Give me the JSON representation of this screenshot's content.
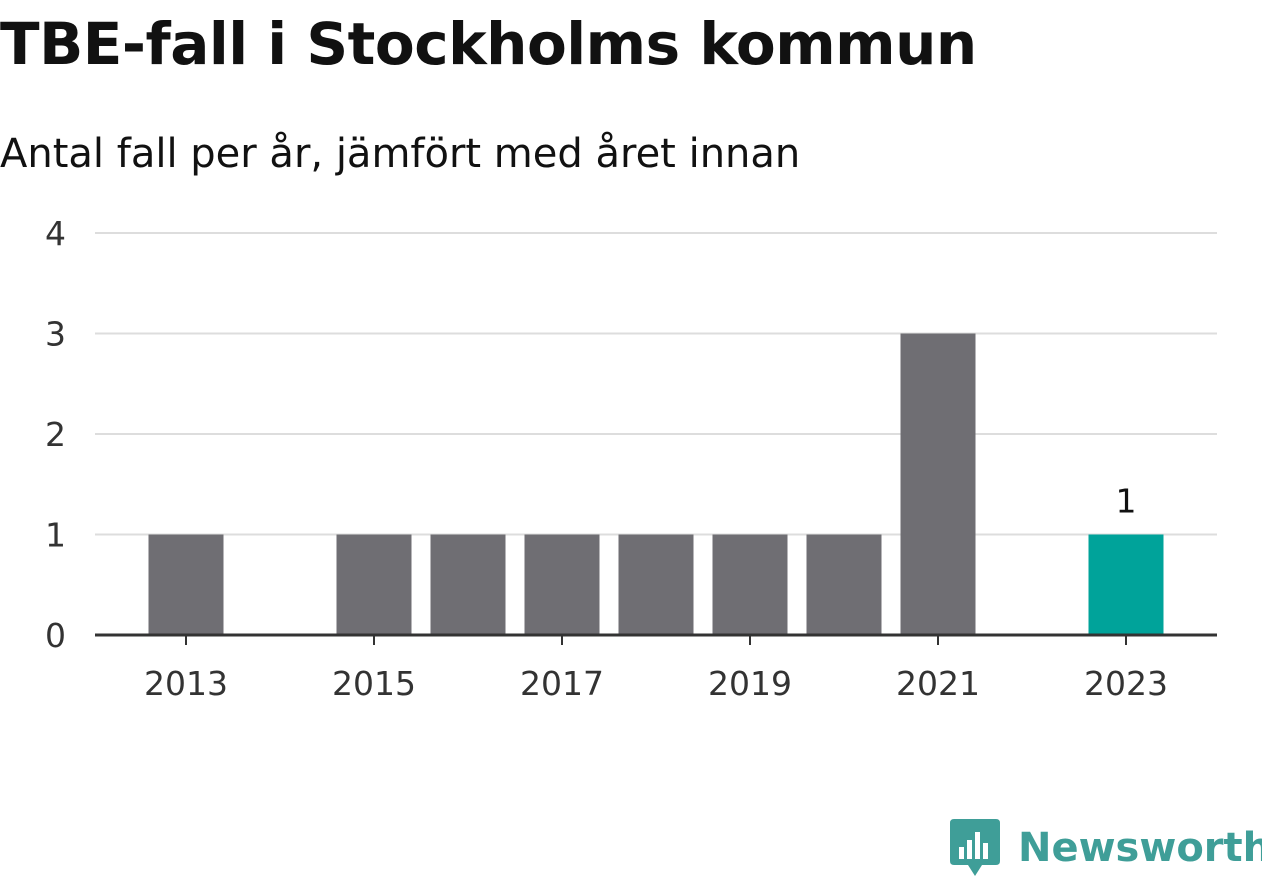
{
  "title": "TBE-fall i Stockholms kommun",
  "subtitle": "Antal fall per år, jämfört med året innan",
  "brand": {
    "name": "Newsworthy",
    "icon": "bar-chart-speech-bubble-icon",
    "color": "#3f9e98"
  },
  "colors": {
    "bar": "#6f6e73",
    "highlight": "#00a39a",
    "grid": "#dddddd",
    "axis": "#333333"
  },
  "chart_data": {
    "type": "bar",
    "title": "TBE-fall i Stockholms kommun",
    "subtitle": "Antal fall per år, jämfört med året innan",
    "xlabel": "",
    "ylabel": "",
    "categories": [
      "2013",
      "2014",
      "2015",
      "2016",
      "2017",
      "2018",
      "2019",
      "2020",
      "2021",
      "2022",
      "2023"
    ],
    "values": [
      1,
      0,
      1,
      1,
      1,
      1,
      1,
      1,
      3,
      0,
      1
    ],
    "highlight_category": "2023",
    "x_tick_labels": [
      "2013",
      "2015",
      "2017",
      "2019",
      "2021",
      "2023"
    ],
    "y_ticks": [
      0,
      1,
      2,
      3,
      4
    ],
    "ylim": [
      0,
      4
    ],
    "annotations": [
      {
        "category": "2023",
        "text": "1"
      }
    ],
    "grid": true,
    "legend": "none"
  }
}
